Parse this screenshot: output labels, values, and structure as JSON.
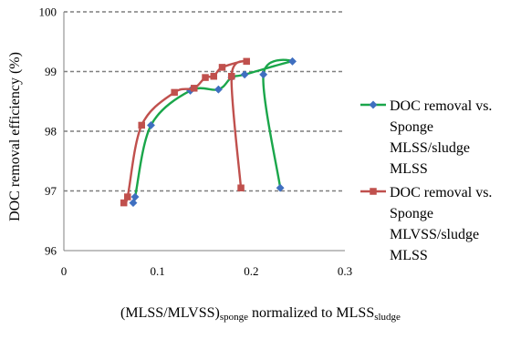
{
  "chart_data": {
    "type": "line",
    "title": "",
    "ylabel": "DOC removal efficiency (%)",
    "xlabel": {
      "prefix": "(MLSS/MLVSS)",
      "prefix_sub": "sponge",
      "middle": " normalized to MLSS",
      "suffix_sub": "sludge"
    },
    "xlim": [
      0,
      0.3
    ],
    "ylim": [
      96,
      100
    ],
    "x_ticks": [
      "0",
      "0.1",
      "0.2",
      "0.3"
    ],
    "y_ticks": [
      "96",
      "97",
      "98",
      "99",
      "100"
    ],
    "x_tick_values": [
      0,
      0.1,
      0.2,
      0.3
    ],
    "y_tick_values": [
      96,
      97,
      98,
      99,
      100
    ],
    "grid": {
      "horizontal": true,
      "style": "dashed"
    },
    "legend_position": "right",
    "series": [
      {
        "name": "DOC removal vs. Sponge MLSS/sludge MLSS",
        "legend_lines": [
          "DOC removal vs.",
          "Sponge",
          "MLSS/sludge",
          "MLSS"
        ],
        "color": "#1aa64a",
        "marker": "diamond",
        "marker_color": "#3f6fc0",
        "points": [
          [
            0.074,
            96.8
          ],
          [
            0.076,
            96.9
          ],
          [
            0.093,
            98.1
          ],
          [
            0.135,
            98.68
          ],
          [
            0.165,
            98.7
          ],
          [
            0.179,
            98.9
          ],
          [
            0.193,
            98.95
          ],
          [
            0.213,
            98.95
          ],
          [
            0.231,
            97.05
          ],
          [
            0.244,
            99.17
          ]
        ],
        "path_order": [
          0,
          1,
          2,
          3,
          4,
          5,
          6,
          9,
          7,
          8
        ]
      },
      {
        "name": "DOC removal vs. Sponge MLVSS/sludge MLSS",
        "legend_lines": [
          "DOC removal vs.",
          "Sponge",
          "MLVSS/sludge",
          "MLSS"
        ],
        "color": "#c0504d",
        "marker": "square",
        "marker_color": "#c0504d",
        "points": [
          [
            0.064,
            96.8
          ],
          [
            0.068,
            96.9
          ],
          [
            0.083,
            98.1
          ],
          [
            0.118,
            98.65
          ],
          [
            0.139,
            98.72
          ],
          [
            0.151,
            98.9
          ],
          [
            0.16,
            98.92
          ],
          [
            0.169,
            99.07
          ],
          [
            0.179,
            98.92
          ],
          [
            0.189,
            97.05
          ],
          [
            0.195,
            99.17
          ]
        ],
        "path_order": [
          0,
          1,
          2,
          3,
          4,
          5,
          6,
          7,
          10,
          8,
          9
        ]
      }
    ]
  }
}
